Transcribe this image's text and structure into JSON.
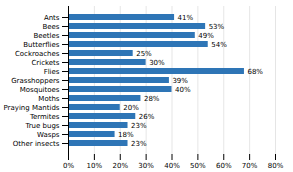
{
  "chart_data": {
    "type": "bar",
    "orientation": "horizontal",
    "categories": [
      "Other insects",
      "Wasps",
      "True bugs",
      "Termites",
      "Praying Mantids",
      "Moths",
      "Mosquitoes",
      "Grasshoppers",
      "Flies",
      "Crickets",
      "Cockroaches",
      "Butterflies",
      "Beetles",
      "Bees",
      "Ants"
    ],
    "values": [
      23,
      18,
      23,
      26,
      20,
      28,
      40,
      39,
      68,
      30,
      25,
      54,
      49,
      53,
      41
    ],
    "value_labels": [
      "23%",
      "18%",
      "23%",
      "26%",
      "20%",
      "28%",
      "40%",
      "39%",
      "68%",
      "30%",
      "25%",
      "54%",
      "49%",
      "53%",
      "41%"
    ],
    "data_labels": true,
    "color": "#2e75b6",
    "xlim": [
      0,
      80
    ],
    "xticks": [
      {
        "value": 0,
        "label": "0%"
      },
      {
        "value": 10,
        "label": "10%"
      },
      {
        "value": 20,
        "label": "20%"
      },
      {
        "value": 30,
        "label": "30%"
      },
      {
        "value": 40,
        "label": "40%"
      },
      {
        "value": 50,
        "label": "50%"
      },
      {
        "value": 60,
        "label": "60%"
      },
      {
        "value": 70,
        "label": "70%"
      },
      {
        "value": 80,
        "label": "80%"
      }
    ],
    "grid": true
  }
}
